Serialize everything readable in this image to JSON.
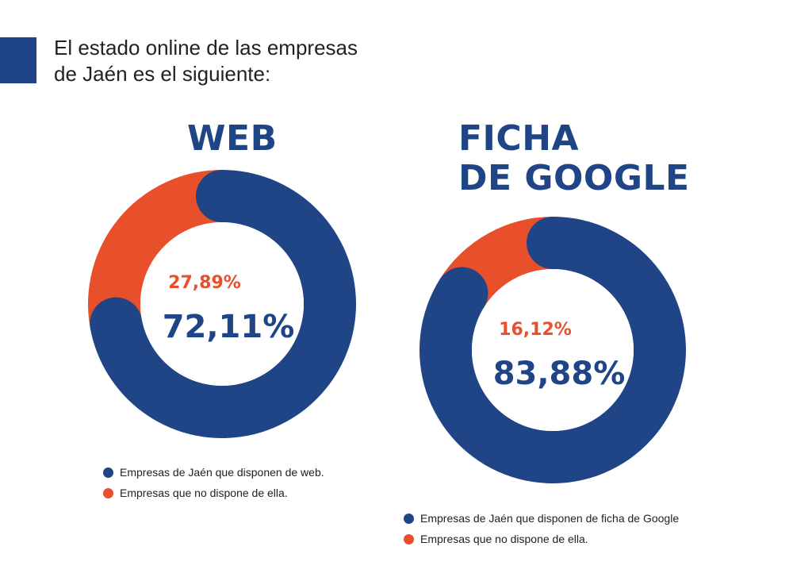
{
  "heading": {
    "line1": "El estado online de las empresas",
    "line2": "de Jaén es el siguiente:"
  },
  "colors": {
    "blue": "#1f4587",
    "orange": "#e8502c"
  },
  "chart_data": [
    {
      "type": "pie",
      "variant": "donut",
      "title_lines": [
        "WEB"
      ],
      "categories": [
        "Empresas de Jaén que disponen de web.",
        "Empresas que no dispone de ella."
      ],
      "values": [
        72.11,
        27.89
      ],
      "value_labels": [
        "72,11%",
        "27,89%"
      ],
      "colors": [
        "#1f4587",
        "#e8502c"
      ],
      "legend_position": "bottom"
    },
    {
      "type": "pie",
      "variant": "donut",
      "title_lines": [
        "FICHA",
        "DE GOOGLE"
      ],
      "categories": [
        "Empresas de Jaén que disponen de ficha de Google",
        "Empresas que no dispone de ella."
      ],
      "values": [
        83.88,
        16.12
      ],
      "value_labels": [
        "83,88%",
        "16,12%"
      ],
      "colors": [
        "#1f4587",
        "#e8502c"
      ],
      "legend_position": "bottom"
    }
  ]
}
